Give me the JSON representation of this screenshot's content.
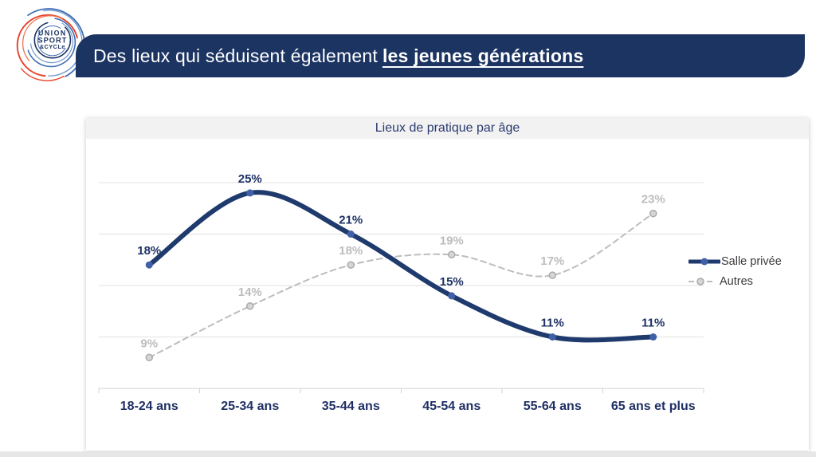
{
  "logo": {
    "line1": "UNION",
    "line2": "SPORT",
    "line3": "&CYCLe"
  },
  "header": {
    "title_regular": "Des lieux qui séduisent également",
    "title_bold": "les jeunes générations"
  },
  "chart_data": {
    "type": "line",
    "title": "Lieux de pratique par âge",
    "categories": [
      "18-24 ans",
      "25-34 ans",
      "35-44 ans",
      "45-54 ans",
      "55-64 ans",
      "65 ans et plus"
    ],
    "series": [
      {
        "name": "Salle privée",
        "values": [
          18,
          25,
          21,
          15,
          11,
          11
        ],
        "color": "#1f3a6d",
        "label_color": "#1e3166",
        "marker_fill": "#4061a8",
        "marker_stroke": "#1f3a6d",
        "style": "solid",
        "line_width": 6
      },
      {
        "name": "Autres",
        "values": [
          9,
          14,
          18,
          19,
          17,
          23
        ],
        "color": "#bdbdbd",
        "label_color": "#bdbdbd",
        "marker_fill": "#d6d6d6",
        "marker_stroke": "#a9a9a9",
        "style": "dashed",
        "line_width": 2
      }
    ],
    "unit": "%",
    "ylim": [
      6,
      31
    ],
    "gridlines": [
      11,
      16,
      21,
      26
    ],
    "grid": true,
    "legend_position": "right",
    "xlabel": "",
    "ylabel": ""
  },
  "colors": {
    "banner_bg": "#1c3462",
    "banner_text": "#ffffff",
    "card_titlebar_bg": "#f2f2f2",
    "card_title_text": "#2a3b6e",
    "gridline": "#e2e2e2",
    "axis": "#d2d2d2",
    "x_label": "#1f2f63",
    "legend_text": "#3a3a3a",
    "logo_blue": "#3e6cb3",
    "logo_red": "#e8432e",
    "logo_navy": "#1c3462"
  }
}
